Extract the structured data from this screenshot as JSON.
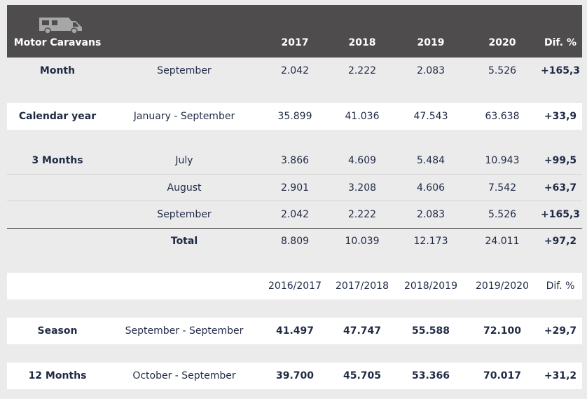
{
  "header": {
    "icon": "motorhome-icon",
    "title": "Motor Caravans",
    "years": [
      "2017",
      "2018",
      "2019",
      "2020"
    ],
    "dif": "Dif. %"
  },
  "month_row": {
    "label": "Month",
    "period": "September",
    "values": [
      "2.042",
      "2.222",
      "2.083",
      "5.526"
    ],
    "dif": "+165,3"
  },
  "calendar_row": {
    "label": "Calendar year",
    "period": "January - September",
    "values": [
      "35.899",
      "41.036",
      "47.543",
      "63.638"
    ],
    "dif": "+33,9"
  },
  "three_months": {
    "label": "3 Months",
    "rows": [
      {
        "period": "July",
        "values": [
          "3.866",
          "4.609",
          "5.484",
          "10.943"
        ],
        "dif": "+99,5"
      },
      {
        "period": "August",
        "values": [
          "2.901",
          "3.208",
          "4.606",
          "7.542"
        ],
        "dif": "+63,7"
      },
      {
        "period": "September",
        "values": [
          "2.042",
          "2.222",
          "2.083",
          "5.526"
        ],
        "dif": "+165,3"
      }
    ],
    "total": {
      "label": "Total",
      "values": [
        "8.809",
        "10.039",
        "12.173",
        "24.011"
      ],
      "dif": "+97,2"
    }
  },
  "season_header": {
    "years": [
      "2016/2017",
      "2017/2018",
      "2018/2019",
      "2019/2020"
    ],
    "dif": "Dif. %"
  },
  "season_row": {
    "label": "Season",
    "period": "September - September",
    "values": [
      "41.497",
      "47.747",
      "55.588",
      "72.100"
    ],
    "dif": "+29,7"
  },
  "twelve_row": {
    "label": "12 Months",
    "period": "October - September",
    "values": [
      "39.700",
      "45.705",
      "53.366",
      "70.017"
    ],
    "dif": "+31,2"
  }
}
